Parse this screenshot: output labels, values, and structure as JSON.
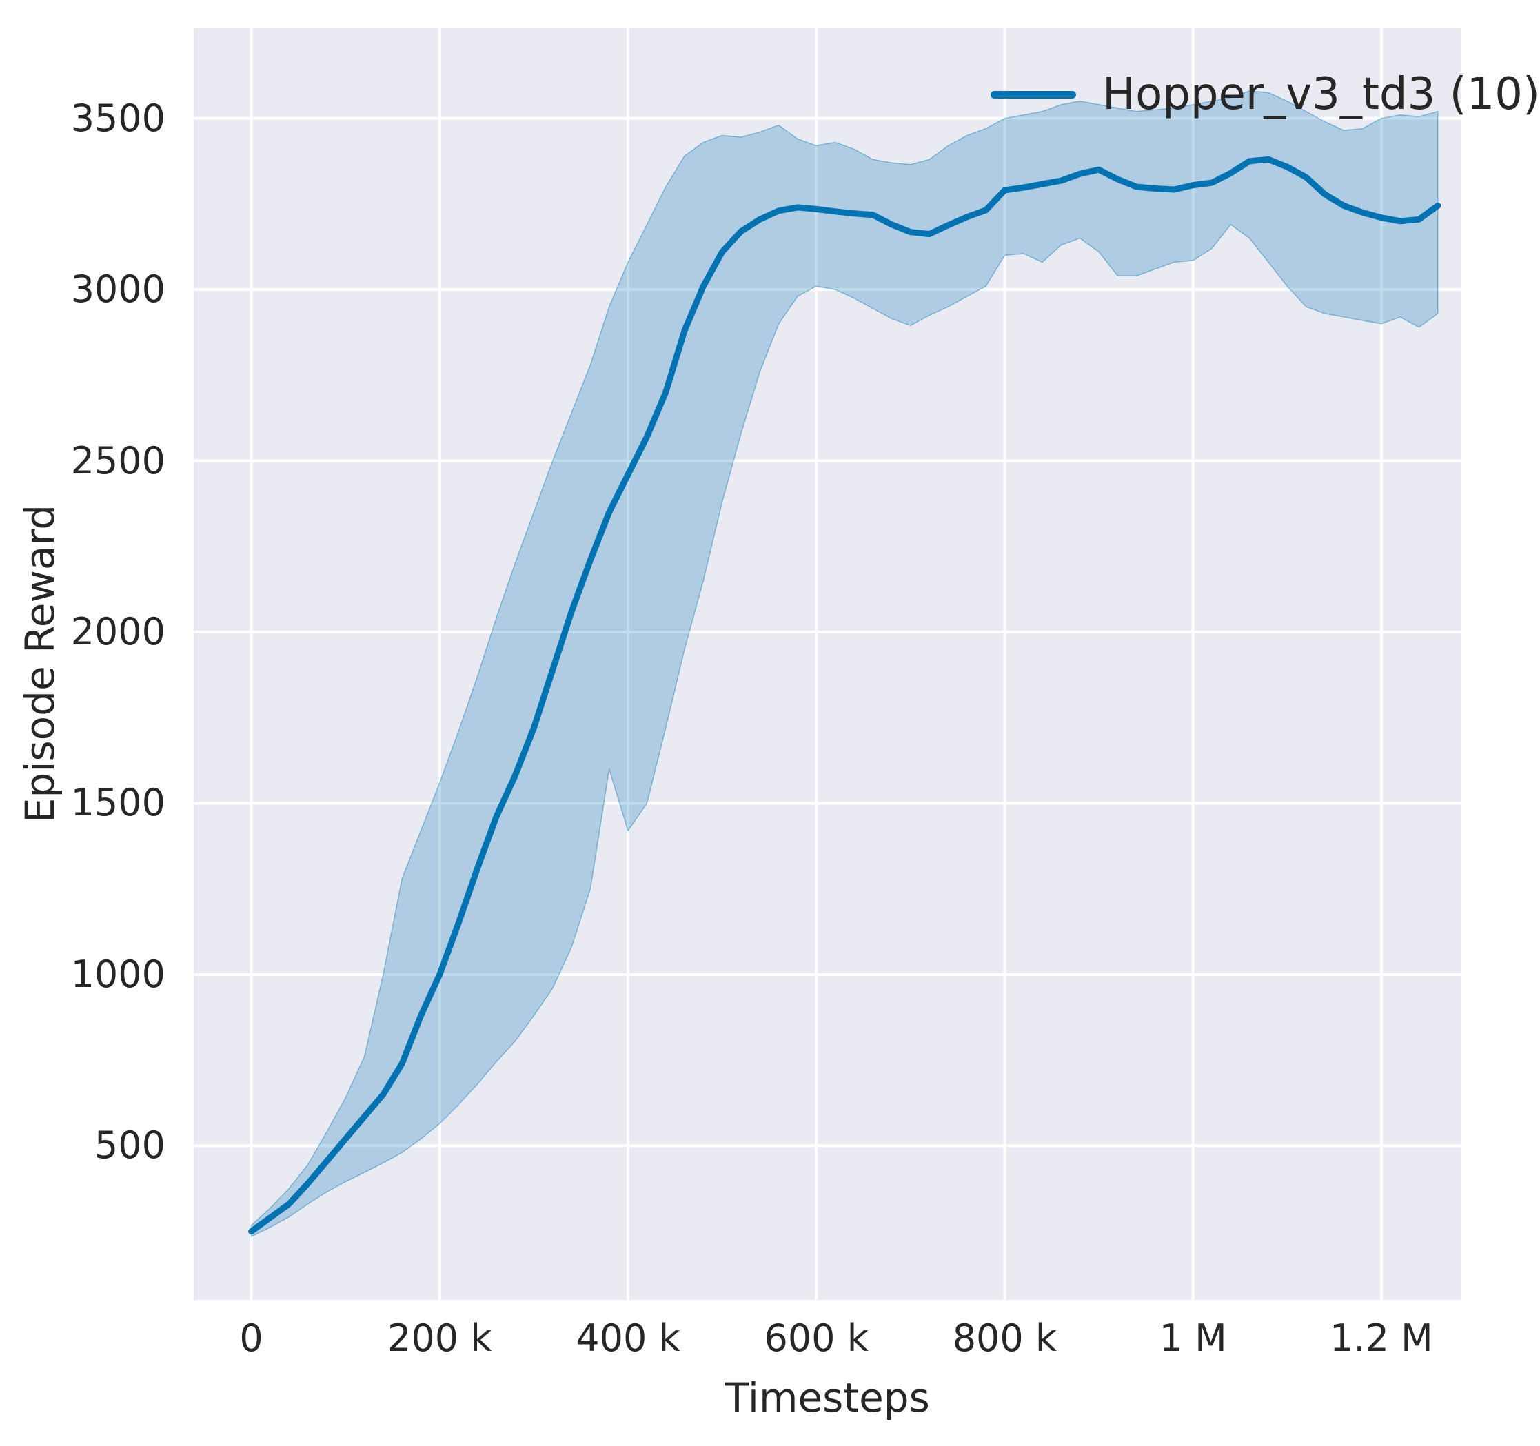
{
  "legend": {
    "label": "Hopper_v3_td3 (10)"
  },
  "chart_data": {
    "type": "line",
    "title": "",
    "xlabel": "Timesteps",
    "ylabel": "Episode Reward",
    "legend_position": "upper right",
    "grid": true,
    "xlim": [
      -61200,
      1285000
    ],
    "ylim": [
      50,
      3765
    ],
    "x_ticks": [
      {
        "value": 0,
        "label": "0"
      },
      {
        "value": 200000,
        "label": "200 k"
      },
      {
        "value": 400000,
        "label": "400 k"
      },
      {
        "value": 600000,
        "label": "600 k"
      },
      {
        "value": 800000,
        "label": "800 k"
      },
      {
        "value": 1000000,
        "label": "1 M"
      },
      {
        "value": 1200000,
        "label": "1.2 M"
      }
    ],
    "y_ticks": [
      {
        "value": 500,
        "label": "500"
      },
      {
        "value": 1000,
        "label": "1000"
      },
      {
        "value": 1500,
        "label": "1500"
      },
      {
        "value": 2000,
        "label": "2000"
      },
      {
        "value": 2500,
        "label": "2500"
      },
      {
        "value": 3000,
        "label": "3000"
      },
      {
        "value": 3500,
        "label": "3500"
      }
    ],
    "series": [
      {
        "name": "Hopper_v3_td3 (10)",
        "x": [
          0,
          20000,
          40000,
          60000,
          80000,
          100000,
          120000,
          140000,
          160000,
          180000,
          200000,
          220000,
          240000,
          260000,
          280000,
          300000,
          320000,
          340000,
          360000,
          380000,
          400000,
          420000,
          440000,
          460000,
          480000,
          500000,
          520000,
          540000,
          560000,
          580000,
          600000,
          620000,
          640000,
          660000,
          680000,
          700000,
          720000,
          740000,
          760000,
          780000,
          800000,
          820000,
          840000,
          860000,
          880000,
          900000,
          920000,
          940000,
          960000,
          980000,
          1000000,
          1020000,
          1040000,
          1060000,
          1080000,
          1100000,
          1120000,
          1140000,
          1160000,
          1180000,
          1200000,
          1220000,
          1240000,
          1260000
        ],
        "mean": [
          250,
          290,
          330,
          390,
          455,
          520,
          585,
          650,
          740,
          880,
          1000,
          1150,
          1310,
          1460,
          1580,
          1720,
          1890,
          2060,
          2210,
          2350,
          2460,
          2570,
          2700,
          2880,
          3010,
          3110,
          3170,
          3205,
          3230,
          3240,
          3235,
          3228,
          3222,
          3218,
          3190,
          3168,
          3162,
          3188,
          3212,
          3232,
          3290,
          3298,
          3308,
          3318,
          3338,
          3350,
          3322,
          3300,
          3295,
          3292,
          3305,
          3312,
          3340,
          3375,
          3380,
          3358,
          3328,
          3278,
          3245,
          3225,
          3210,
          3200,
          3205,
          3245
        ],
        "band_lower": [
          235,
          262,
          292,
          330,
          365,
          395,
          422,
          450,
          480,
          520,
          565,
          620,
          680,
          745,
          805,
          880,
          960,
          1080,
          1250,
          1600,
          1420,
          1500,
          1720,
          1950,
          2150,
          2380,
          2580,
          2760,
          2900,
          2980,
          3010,
          3000,
          2975,
          2945,
          2915,
          2895,
          2925,
          2950,
          2980,
          3010,
          3100,
          3105,
          3080,
          3130,
          3150,
          3110,
          3040,
          3040,
          3060,
          3080,
          3085,
          3120,
          3190,
          3150,
          3080,
          3010,
          2950,
          2930,
          2920,
          2910,
          2900,
          2920,
          2890,
          2930
        ],
        "band_upper": [
          268,
          318,
          375,
          445,
          540,
          640,
          760,
          1000,
          1280,
          1420,
          1560,
          1710,
          1870,
          2040,
          2200,
          2350,
          2500,
          2640,
          2780,
          2950,
          3080,
          3190,
          3300,
          3390,
          3430,
          3450,
          3445,
          3460,
          3480,
          3440,
          3420,
          3430,
          3410,
          3380,
          3370,
          3365,
          3380,
          3420,
          3450,
          3470,
          3500,
          3510,
          3520,
          3540,
          3550,
          3540,
          3530,
          3520,
          3525,
          3530,
          3540,
          3550,
          3560,
          3580,
          3575,
          3550,
          3520,
          3490,
          3465,
          3470,
          3500,
          3510,
          3505,
          3520
        ]
      }
    ],
    "colors": {
      "line": "#0173b2",
      "band_fill": "rgba(1,115,178,0.25)",
      "band_edge": "rgba(1,115,178,0.4)",
      "axes_background": "#eaeaf2",
      "gridline": "#ffffff",
      "text": "#262626"
    }
  }
}
